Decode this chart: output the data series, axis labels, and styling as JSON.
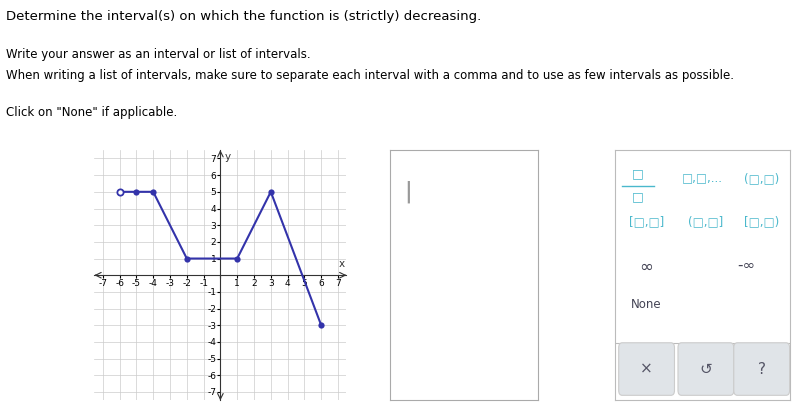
{
  "title_text": "Determine the interval(s) on which the function is (strictly) decreasing.",
  "instruction1": "Write your answer as an interval or list of intervals.",
  "instruction2": "When writing a list of intervals, make sure to separate each interval with a comma and to use as few intervals as possible.",
  "instruction3": "Click on \"None\" if applicable.",
  "graph_points": [
    [
      -6,
      5
    ],
    [
      -5,
      5
    ],
    [
      -4,
      5
    ],
    [
      -2,
      1
    ],
    [
      1,
      1
    ],
    [
      3,
      5
    ],
    [
      6,
      -3
    ]
  ],
  "open_dot_points": [
    [
      -6,
      5
    ]
  ],
  "closed_dot_points": [
    [
      -5,
      5
    ],
    [
      -4,
      5
    ],
    [
      -2,
      1
    ],
    [
      1,
      1
    ],
    [
      3,
      5
    ],
    [
      6,
      -3
    ]
  ],
  "line_color": "#3333aa",
  "dot_color": "#3333aa",
  "open_dot_face": "#ffffff",
  "xlim": [
    -7.5,
    7.5
  ],
  "ylim": [
    -7.5,
    7.5
  ],
  "xticks": [
    -7,
    -6,
    -5,
    -4,
    -3,
    -2,
    -1,
    0,
    1,
    2,
    3,
    4,
    5,
    6,
    7
  ],
  "yticks": [
    -7,
    -6,
    -5,
    -4,
    -3,
    -2,
    -1,
    1,
    2,
    3,
    4,
    5,
    6,
    7
  ],
  "xlabel": "x",
  "ylabel": "y",
  "graph_bg": "#ffffff",
  "grid_color": "#cccccc",
  "answer_box_color": "#ffffff",
  "answer_box_border": "#aaaaaa",
  "widget_bg": "#ffffff",
  "widget_border": "#bbbbbb",
  "fraction_color": "#4ab8cc",
  "btn_bg": "#e0e4e8",
  "btn_text_color": "#555566",
  "text_color": "#000000",
  "dark_text": "#444455",
  "font_size_title": 9.5,
  "font_size_instr": 8.5,
  "font_size_axis": 6.5,
  "font_size_widget": 8.5
}
